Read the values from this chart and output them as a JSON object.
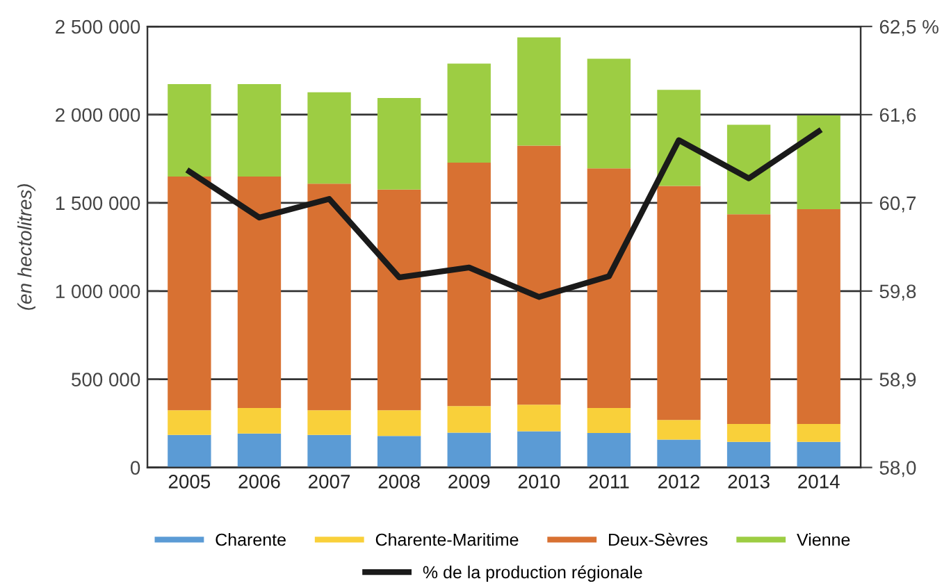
{
  "chart_data": {
    "type": "bar",
    "stacked": true,
    "ylabel": "(en hectolitres)",
    "categories": [
      "2005",
      "2006",
      "2007",
      "2008",
      "2009",
      "2010",
      "2011",
      "2012",
      "2013",
      "2014"
    ],
    "series": [
      {
        "name": "Charente",
        "color": "#5b9bd5",
        "values": [
          184000,
          192000,
          184000,
          179000,
          197000,
          205000,
          195000,
          158000,
          145000,
          145000
        ]
      },
      {
        "name": "Charente-Maritime",
        "color": "#f9d03a",
        "values": [
          140000,
          145000,
          140000,
          145000,
          151000,
          151000,
          142000,
          111000,
          102000,
          102000
        ]
      },
      {
        "name": "Deux-Sèvres",
        "color": "#d87132",
        "values": [
          1325000,
          1312000,
          1285000,
          1251000,
          1380000,
          1469000,
          1359000,
          1327000,
          1188000,
          1217000
        ]
      },
      {
        "name": "Vienne",
        "color": "#9dcd43",
        "values": [
          524000,
          524000,
          518000,
          519000,
          561000,
          613000,
          621000,
          545000,
          508000,
          532000
        ]
      },
      {
        "name": "% de la production régionale",
        "type": "line",
        "axis": "y2",
        "color": "#1a1a1a",
        "values": [
          61.02,
          60.55,
          60.74,
          59.94,
          60.04,
          59.74,
          59.95,
          61.34,
          60.95,
          61.43
        ]
      }
    ],
    "ylim": [
      0,
      2500000
    ],
    "yticks": [
      {
        "value": 0,
        "label": "0"
      },
      {
        "value": 500000,
        "label": "500 000"
      },
      {
        "value": 1000000,
        "label": "1 000 000"
      },
      {
        "value": 1500000,
        "label": "1 500 000"
      },
      {
        "value": 2000000,
        "label": "2 000 000"
      },
      {
        "value": 2500000,
        "label": "2 500 000"
      }
    ],
    "y2lim": [
      58.0,
      62.5
    ],
    "y2ticks": [
      {
        "value": 58.0,
        "label": "58,0"
      },
      {
        "value": 58.9,
        "label": "58,9"
      },
      {
        "value": 59.8,
        "label": "59,8"
      },
      {
        "value": 60.7,
        "label": "60,7"
      },
      {
        "value": 61.6,
        "label": "61,6"
      },
      {
        "value": 62.5,
        "label": "62,5 %"
      }
    ],
    "grid": "y",
    "legend": "bottom",
    "line_style": "solid",
    "marker": "none"
  }
}
